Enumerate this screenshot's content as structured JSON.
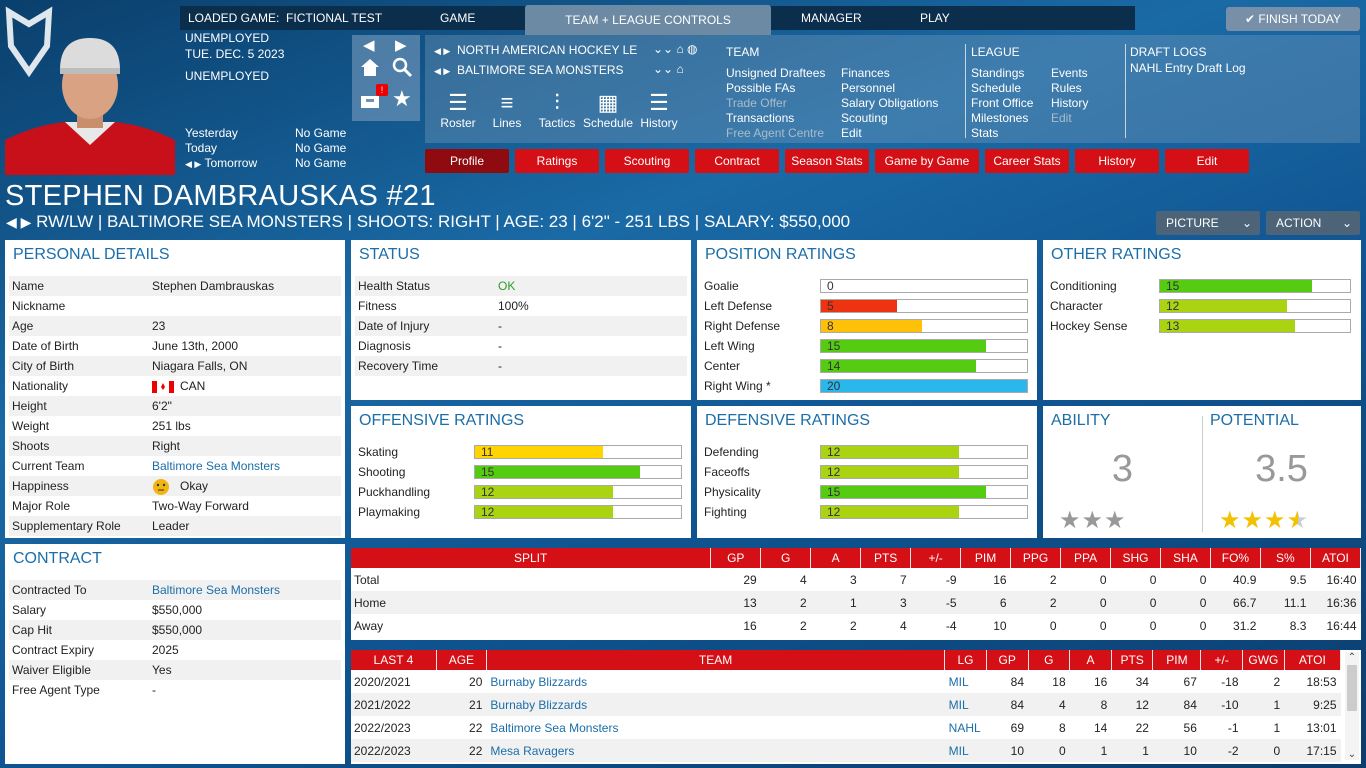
{
  "topbar": {
    "loaded_label": "LOADED GAME:",
    "loaded_value": "FICTIONAL TEST",
    "menu": [
      "GAME",
      "TEAM + LEAGUE CONTROLS",
      "MANAGER",
      "PLAY"
    ],
    "finish": "FINISH TODAY"
  },
  "status": {
    "line1": "UNEMPLOYED",
    "date": "TUE. DEC. 5 2023",
    "line3": "UNEMPLOYED",
    "days": [
      {
        "label": "Yesterday",
        "value": "No Game"
      },
      {
        "label": "Today",
        "value": "No Game"
      },
      {
        "label": "Tomorrow",
        "value": "No Game"
      }
    ]
  },
  "league_sel": "NORTH AMERICAN HOCKEY LE",
  "team_sel": "BALTIMORE SEA MONSTERS",
  "toolicons": [
    "Roster",
    "Lines",
    "Tactics",
    "Schedule",
    "History"
  ],
  "team_menu": {
    "title": "TEAM",
    "col1": [
      "Unsigned Draftees",
      "Possible FAs",
      "Trade Offer",
      "Transactions",
      "Free Agent Centre"
    ],
    "col2": [
      "Finances",
      "Personnel",
      "Salary Obligations",
      "Scouting",
      "Edit"
    ]
  },
  "league_menu": {
    "title": "LEAGUE",
    "col1": [
      "Standings",
      "Schedule",
      "Front Office",
      "Milestones",
      "Stats"
    ],
    "col2": [
      "Events",
      "Rules",
      "History",
      "Edit"
    ]
  },
  "draft_menu": {
    "title": "DRAFT LOGS",
    "items": [
      "NAHL Entry Draft Log"
    ]
  },
  "tabs": [
    "Profile",
    "Ratings",
    "Scouting",
    "Contract",
    "Season Stats",
    "Game by Game",
    "Career Stats",
    "History",
    "Edit"
  ],
  "player": {
    "name": "STEPHEN DAMBRAUSKAS #21",
    "sub": "RW/LW | BALTIMORE SEA MONSTERS | SHOOTS: RIGHT | AGE: 23 | 6'2\" - 251 LBS | SALARY: $550,000"
  },
  "buttons": {
    "picture": "PICTURE",
    "action": "ACTION"
  },
  "personal": {
    "title": "PERSONAL DETAILS",
    "rows": [
      [
        "Name",
        "Stephen Dambrauskas"
      ],
      [
        "Nickname",
        ""
      ],
      [
        "Age",
        "23"
      ],
      [
        "Date of Birth",
        "June 13th, 2000"
      ],
      [
        "City of Birth",
        "Niagara Falls, ON"
      ],
      [
        "Nationality",
        "CAN"
      ],
      [
        "Height",
        "6'2\""
      ],
      [
        "Weight",
        "251 lbs"
      ],
      [
        "Shoots",
        "Right"
      ],
      [
        "Current Team",
        "Baltimore Sea Monsters"
      ],
      [
        "Happiness",
        "Okay"
      ],
      [
        "Major Role",
        "Two-Way Forward"
      ],
      [
        "Supplementary Role",
        "Leader"
      ]
    ]
  },
  "contract": {
    "title": "CONTRACT",
    "rows": [
      [
        "Contracted To",
        "Baltimore Sea Monsters"
      ],
      [
        "Salary",
        "$550,000"
      ],
      [
        "Cap Hit",
        "$550,000"
      ],
      [
        "Contract Expiry",
        "2025"
      ],
      [
        "Waiver Eligible",
        "Yes"
      ],
      [
        "Free Agent Type",
        "-"
      ]
    ]
  },
  "statuspanel": {
    "title": "STATUS",
    "rows": [
      [
        "Health Status",
        "OK"
      ],
      [
        "Fitness",
        "100%"
      ],
      [
        "Date of Injury",
        "-"
      ],
      [
        "Diagnosis",
        "-"
      ],
      [
        "Recovery Time",
        "-"
      ]
    ]
  },
  "position": {
    "title": "POSITION RATINGS",
    "rows": [
      {
        "label": "Goalie",
        "value": "0",
        "pct": 0,
        "color": "#ffffff"
      },
      {
        "label": "Left Defense",
        "value": "5",
        "pct": 0.37,
        "color": "#ee3311"
      },
      {
        "label": "Right Defense",
        "value": "8",
        "pct": 0.49,
        "color": "#ffc107"
      },
      {
        "label": "Left Wing",
        "value": "15",
        "pct": 0.8,
        "color": "#55cc11"
      },
      {
        "label": "Center",
        "value": "14",
        "pct": 0.75,
        "color": "#55cc11"
      },
      {
        "label": "Right Wing *",
        "value": "20",
        "pct": 1.0,
        "color": "#2ab7ec"
      }
    ]
  },
  "other": {
    "title": "OTHER RATINGS",
    "rows": [
      {
        "label": "Conditioning",
        "value": "15",
        "pct": 0.8,
        "color": "#55cc11"
      },
      {
        "label": "Character",
        "value": "12",
        "pct": 0.67,
        "color": "#aad411"
      },
      {
        "label": "Hockey Sense",
        "value": "13",
        "pct": 0.71,
        "color": "#aad411"
      }
    ]
  },
  "offensive": {
    "title": "OFFENSIVE RATINGS",
    "rows": [
      {
        "label": "Skating",
        "value": "11",
        "pct": 0.62,
        "color": "#ffd400"
      },
      {
        "label": "Shooting",
        "value": "15",
        "pct": 0.8,
        "color": "#55cc11"
      },
      {
        "label": "Puckhandling",
        "value": "12",
        "pct": 0.67,
        "color": "#aad411"
      },
      {
        "label": "Playmaking",
        "value": "12",
        "pct": 0.67,
        "color": "#aad411"
      }
    ]
  },
  "defensive": {
    "title": "DEFENSIVE RATINGS",
    "rows": [
      {
        "label": "Defending",
        "value": "12",
        "pct": 0.67,
        "color": "#aad411"
      },
      {
        "label": "Faceoffs",
        "value": "12",
        "pct": 0.67,
        "color": "#aad411"
      },
      {
        "label": "Physicality",
        "value": "15",
        "pct": 0.8,
        "color": "#55cc11"
      },
      {
        "label": "Fighting",
        "value": "12",
        "pct": 0.67,
        "color": "#aad411"
      }
    ]
  },
  "ability": {
    "title": "ABILITY",
    "value": "3",
    "stars": 3
  },
  "potential": {
    "title": "POTENTIAL",
    "value": "3.5",
    "stars": 3.5
  },
  "splits": {
    "headers": [
      "SPLIT",
      "GP",
      "G",
      "A",
      "PTS",
      "+/-",
      "PIM",
      "PPG",
      "PPA",
      "SHG",
      "SHA",
      "FO%",
      "S%",
      "ATOI"
    ],
    "rows": [
      [
        "Total",
        "29",
        "4",
        "3",
        "7",
        "-9",
        "16",
        "2",
        "0",
        "0",
        "0",
        "40.9",
        "9.5",
        "16:40"
      ],
      [
        "Home",
        "13",
        "2",
        "1",
        "3",
        "-5",
        "6",
        "2",
        "0",
        "0",
        "0",
        "66.7",
        "11.1",
        "16:36"
      ],
      [
        "Away",
        "16",
        "2",
        "2",
        "4",
        "-4",
        "10",
        "0",
        "0",
        "0",
        "0",
        "31.2",
        "8.3",
        "16:44"
      ]
    ]
  },
  "last4": {
    "headers": [
      "LAST 4",
      "AGE",
      "TEAM",
      "LG",
      "GP",
      "G",
      "A",
      "PTS",
      "PIM",
      "+/-",
      "GWG",
      "ATOI"
    ],
    "rows": [
      [
        "2020/2021",
        "20",
        "Burnaby Blizzards",
        "MIL",
        "84",
        "18",
        "16",
        "34",
        "67",
        "-18",
        "2",
        "18:53"
      ],
      [
        "2021/2022",
        "21",
        "Burnaby Blizzards",
        "MIL",
        "84",
        "4",
        "8",
        "12",
        "84",
        "-10",
        "1",
        "9:25"
      ],
      [
        "2022/2023",
        "22",
        "Baltimore Sea Monsters",
        "NAHL",
        "69",
        "8",
        "14",
        "22",
        "56",
        "-1",
        "1",
        "13:01"
      ],
      [
        "2022/2023",
        "22",
        "Mesa Ravagers",
        "MIL",
        "10",
        "0",
        "1",
        "1",
        "10",
        "-2",
        "0",
        "17:15"
      ]
    ]
  }
}
